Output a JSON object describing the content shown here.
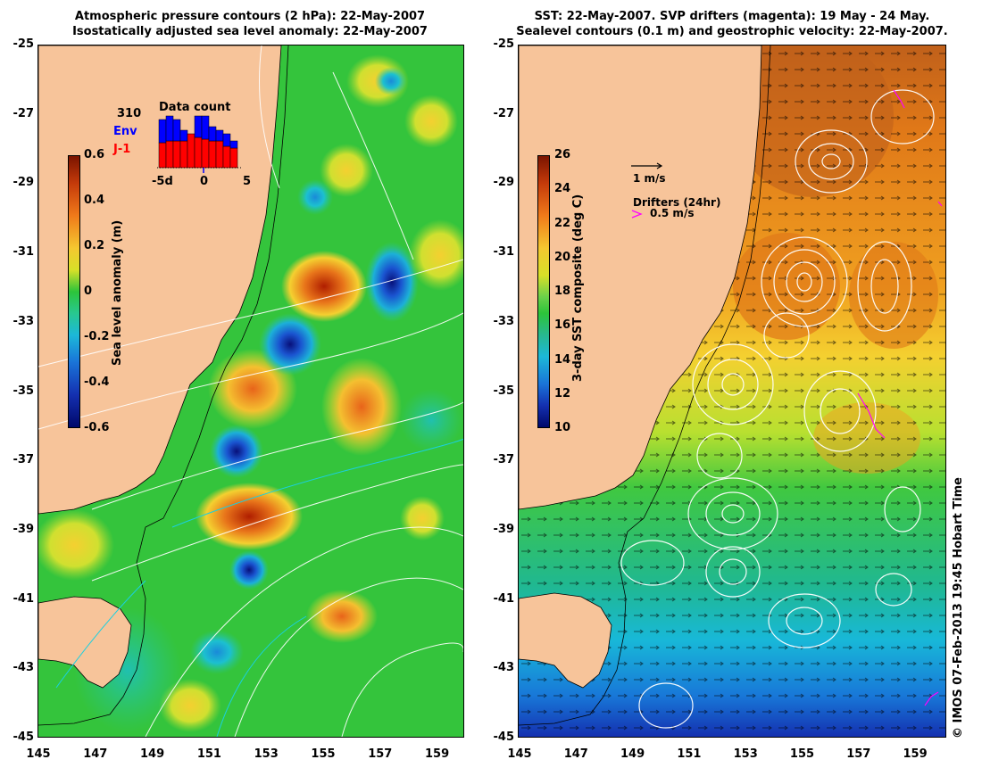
{
  "left_title": [
    "Atmospheric pressure contours (2 hPa): 22-May-2007",
    "Isostatically adjusted sea level anomaly: 22-May-2007"
  ],
  "right_title": [
    "SST: 22-May-2007. SVP drifters (magenta): 19 May - 24 May.",
    "Sealevel contours (0.1 m) and geostrophic velocity: 22-May-2007."
  ],
  "y_ticks": [
    "-25",
    "-27",
    "-29",
    "-31",
    "-33",
    "-35",
    "-37",
    "-39",
    "-41",
    "-43",
    "-45"
  ],
  "x_ticks": [
    "145",
    "147",
    "149",
    "151",
    "153",
    "155",
    "157",
    "159"
  ],
  "left_colorbar": {
    "label": "Sea level anomaly (m)",
    "ticks": [
      "0.6",
      "0.4",
      "0.2",
      "0",
      "-0.2",
      "-0.4",
      "-0.6"
    ]
  },
  "right_colorbar": {
    "label": "3-day SST composite (deg C)",
    "ticks": [
      "26",
      "24",
      "22",
      "20",
      "18",
      "16",
      "14",
      "12",
      "10"
    ]
  },
  "data_count": {
    "title": "Data count",
    "count": "310",
    "series": [
      {
        "name": "Env",
        "color": "#0000ff"
      },
      {
        "name": "J-1",
        "color": "#ff0000"
      }
    ],
    "axis": [
      "-5d",
      "0",
      "5"
    ]
  },
  "velocity_scale": {
    "label": "1 m/s"
  },
  "drifters": {
    "title": "Drifters (24hr)",
    "label": "0.5 m/s",
    "color": "#ff00ff"
  },
  "credit": "© IMOS 07-Feb-2013 19:45 Hobart Time",
  "colors": {
    "land": "#f7c49a",
    "ocean_mid": "#2cc43a",
    "warm": "#e8741a",
    "cool": "#1a74d8"
  }
}
